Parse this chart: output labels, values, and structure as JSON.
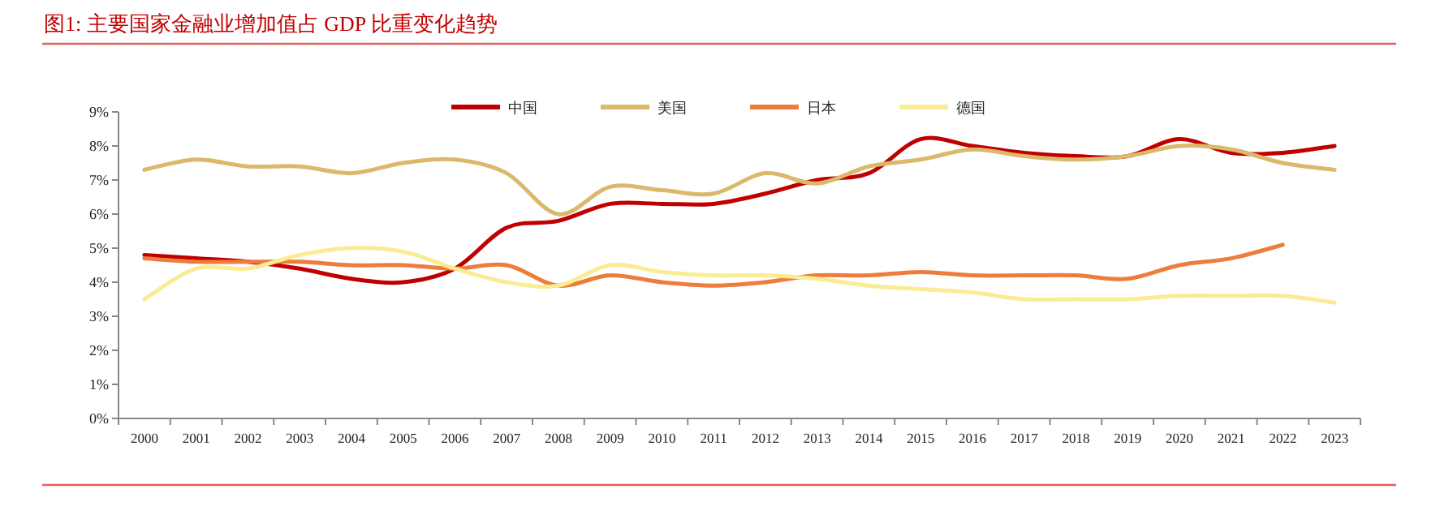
{
  "chart_data": {
    "type": "line",
    "title": "图1:   主要国家金融业增加值占 GDP 比重变化趋势",
    "categories": [
      "2000",
      "2001",
      "2002",
      "2003",
      "2004",
      "2005",
      "2006",
      "2007",
      "2008",
      "2009",
      "2010",
      "2011",
      "2012",
      "2013",
      "2014",
      "2015",
      "2016",
      "2017",
      "2018",
      "2019",
      "2020",
      "2021",
      "2022",
      "2023"
    ],
    "series": [
      {
        "name": "中国",
        "color": "#c00000",
        "values": [
          4.8,
          4.7,
          4.6,
          4.4,
          4.1,
          4.0,
          4.4,
          5.6,
          5.8,
          6.3,
          6.3,
          6.3,
          6.6,
          7.0,
          7.2,
          8.2,
          8.0,
          7.8,
          7.7,
          7.7,
          8.2,
          7.8,
          7.8,
          8.0
        ]
      },
      {
        "name": "美国",
        "color": "#dbb86a",
        "values": [
          7.3,
          7.6,
          7.4,
          7.4,
          7.2,
          7.5,
          7.6,
          7.2,
          6.0,
          6.8,
          6.7,
          6.6,
          7.2,
          6.9,
          7.4,
          7.6,
          7.9,
          7.7,
          7.6,
          7.7,
          8.0,
          7.9,
          7.5,
          7.3
        ]
      },
      {
        "name": "日本",
        "color": "#ee7c3c",
        "values": [
          4.7,
          4.6,
          4.6,
          4.6,
          4.5,
          4.5,
          4.4,
          4.5,
          3.9,
          4.2,
          4.0,
          3.9,
          4.0,
          4.2,
          4.2,
          4.3,
          4.2,
          4.2,
          4.2,
          4.1,
          4.5,
          4.7,
          5.1,
          null
        ]
      },
      {
        "name": "德国",
        "color": "#f9ec94",
        "values": [
          3.5,
          4.4,
          4.4,
          4.8,
          5.0,
          4.9,
          4.4,
          4.0,
          3.9,
          4.5,
          4.3,
          4.2,
          4.2,
          4.1,
          3.9,
          3.8,
          3.7,
          3.5,
          3.5,
          3.5,
          3.6,
          3.6,
          3.6,
          3.4
        ]
      }
    ],
    "ylim": [
      0,
      9
    ],
    "yticks": [
      {
        "value": 0,
        "label": "0%"
      },
      {
        "value": 1,
        "label": "1%"
      },
      {
        "value": 2,
        "label": "2%"
      },
      {
        "value": 3,
        "label": "3%"
      },
      {
        "value": 4,
        "label": "4%"
      },
      {
        "value": 5,
        "label": "5%"
      },
      {
        "value": 6,
        "label": "6%"
      },
      {
        "value": 7,
        "label": "7%"
      },
      {
        "value": 8,
        "label": "8%"
      },
      {
        "value": 9,
        "label": "9%"
      }
    ],
    "legend": "top",
    "grid": false,
    "marker": "none",
    "line_style": "solid"
  }
}
